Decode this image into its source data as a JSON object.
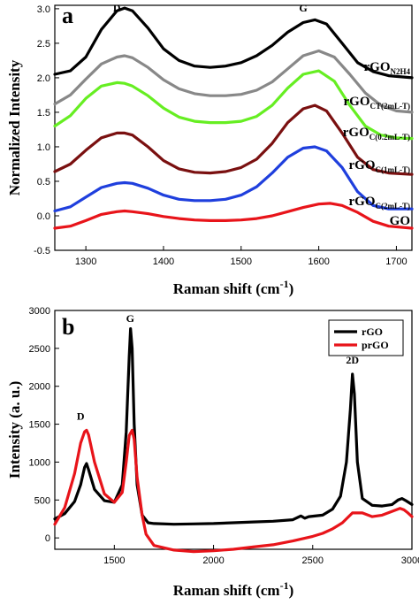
{
  "chart_data": [
    {
      "panel": "a",
      "type": "line",
      "xlabel": "Raman shift (cm",
      "xlabel_sup": "-1",
      "xlabel_end": ")",
      "ylabel": "Normalized Intensity",
      "xlim": [
        1260,
        1720
      ],
      "ylim": [
        -0.5,
        3.05
      ],
      "xticks": [
        1300,
        1400,
        1500,
        1600,
        1700
      ],
      "yticks": [
        -0.5,
        0.0,
        0.5,
        1.0,
        1.5,
        2.0,
        2.5,
        3.0
      ],
      "peak_labels": [
        {
          "text": "D",
          "x": 1340,
          "y": 2.96
        },
        {
          "text": "G",
          "x": 1580,
          "y": 2.96
        }
      ],
      "series": [
        {
          "label_main": "rGO",
          "label_sub": "N2H4",
          "color": "#000000",
          "x": [
            1260,
            1280,
            1300,
            1320,
            1340,
            1350,
            1360,
            1380,
            1400,
            1420,
            1440,
            1460,
            1480,
            1500,
            1520,
            1540,
            1560,
            1580,
            1595,
            1610,
            1630,
            1650,
            1670,
            1690,
            1720
          ],
          "y": [
            2.05,
            2.1,
            2.3,
            2.7,
            2.97,
            3.01,
            2.97,
            2.72,
            2.42,
            2.25,
            2.17,
            2.15,
            2.17,
            2.22,
            2.32,
            2.47,
            2.66,
            2.8,
            2.84,
            2.78,
            2.5,
            2.22,
            2.09,
            2.03,
            2.0
          ]
        },
        {
          "label_main": "rGO",
          "label_sub": "CT(2mL-T)",
          "color": "#888888",
          "x": [
            1260,
            1280,
            1300,
            1320,
            1340,
            1350,
            1360,
            1380,
            1400,
            1420,
            1440,
            1460,
            1480,
            1500,
            1520,
            1540,
            1560,
            1580,
            1600,
            1620,
            1640,
            1660,
            1680,
            1700,
            1720
          ],
          "y": [
            1.62,
            1.75,
            1.98,
            2.2,
            2.3,
            2.32,
            2.29,
            2.15,
            1.97,
            1.84,
            1.77,
            1.74,
            1.74,
            1.76,
            1.82,
            1.94,
            2.13,
            2.32,
            2.39,
            2.3,
            2.05,
            1.78,
            1.6,
            1.52,
            1.5
          ]
        },
        {
          "label_main": "rGO",
          "label_sub": "C(0.2mL-T)",
          "color": "#66ee22",
          "x": [
            1260,
            1280,
            1300,
            1320,
            1340,
            1350,
            1360,
            1380,
            1400,
            1420,
            1440,
            1460,
            1480,
            1500,
            1520,
            1540,
            1560,
            1580,
            1600,
            1620,
            1640,
            1660,
            1680,
            1700,
            1720
          ],
          "y": [
            1.3,
            1.45,
            1.7,
            1.88,
            1.93,
            1.92,
            1.88,
            1.74,
            1.56,
            1.43,
            1.37,
            1.35,
            1.35,
            1.37,
            1.44,
            1.6,
            1.85,
            2.05,
            2.1,
            1.95,
            1.6,
            1.3,
            1.17,
            1.13,
            1.12
          ]
        },
        {
          "label_main": "rGO",
          "label_sub": "C(1mL-T)",
          "color": "#7a1010",
          "x": [
            1260,
            1280,
            1300,
            1320,
            1340,
            1350,
            1360,
            1380,
            1400,
            1420,
            1440,
            1460,
            1480,
            1500,
            1520,
            1540,
            1560,
            1580,
            1595,
            1610,
            1630,
            1650,
            1670,
            1690,
            1720
          ],
          "y": [
            0.64,
            0.75,
            0.95,
            1.13,
            1.2,
            1.2,
            1.17,
            1.0,
            0.8,
            0.68,
            0.63,
            0.62,
            0.64,
            0.7,
            0.82,
            1.05,
            1.35,
            1.55,
            1.6,
            1.52,
            1.2,
            0.85,
            0.67,
            0.62,
            0.6
          ]
        },
        {
          "label_main": "rGO",
          "label_sub": "C(2mL-T)",
          "color": "#1f3fdd",
          "x": [
            1260,
            1280,
            1300,
            1320,
            1340,
            1350,
            1360,
            1380,
            1400,
            1420,
            1440,
            1460,
            1480,
            1500,
            1520,
            1540,
            1560,
            1580,
            1595,
            1610,
            1630,
            1650,
            1670,
            1690,
            1720
          ],
          "y": [
            0.07,
            0.13,
            0.27,
            0.41,
            0.47,
            0.48,
            0.47,
            0.4,
            0.3,
            0.24,
            0.22,
            0.22,
            0.24,
            0.3,
            0.42,
            0.62,
            0.85,
            0.98,
            1.0,
            0.94,
            0.7,
            0.35,
            0.15,
            0.1,
            0.1
          ]
        },
        {
          "label_main": "GO",
          "label_sub": "",
          "color": "#e8141a",
          "x": [
            1260,
            1280,
            1300,
            1320,
            1340,
            1350,
            1360,
            1380,
            1400,
            1420,
            1440,
            1460,
            1480,
            1500,
            1520,
            1540,
            1560,
            1580,
            1600,
            1615,
            1630,
            1650,
            1670,
            1690,
            1720
          ],
          "y": [
            -0.18,
            -0.15,
            -0.07,
            0.02,
            0.06,
            0.07,
            0.06,
            0.03,
            -0.01,
            -0.04,
            -0.06,
            -0.07,
            -0.07,
            -0.06,
            -0.04,
            0.0,
            0.06,
            0.12,
            0.17,
            0.18,
            0.15,
            0.05,
            -0.08,
            -0.15,
            -0.18
          ]
        }
      ]
    },
    {
      "panel": "b",
      "type": "line",
      "xlabel": "Raman shift (cm",
      "xlabel_sup": "-1",
      "xlabel_end": ")",
      "ylabel": "Intensity (a. u.)",
      "xlim": [
        1200,
        3000
      ],
      "ylim": [
        -150,
        3000
      ],
      "xticks": [
        1500,
        2000,
        2500,
        3000
      ],
      "yticks": [
        0,
        500,
        1000,
        1500,
        2000,
        2500,
        3000
      ],
      "peak_labels": [
        {
          "text": "D",
          "x": 1330,
          "y": 1560
        },
        {
          "text": "G",
          "x": 1580,
          "y": 2850
        },
        {
          "text": "2D",
          "x": 2700,
          "y": 2300
        }
      ],
      "legend_position": "top-right",
      "series": [
        {
          "label_main": "rGO",
          "color": "#000000",
          "x": [
            1200,
            1250,
            1300,
            1330,
            1350,
            1360,
            1370,
            1400,
            1450,
            1500,
            1540,
            1560,
            1575,
            1582,
            1590,
            1600,
            1615,
            1640,
            1670,
            1700,
            1800,
            1900,
            2000,
            2100,
            2200,
            2300,
            2400,
            2440,
            2460,
            2480,
            2550,
            2600,
            2640,
            2670,
            2690,
            2700,
            2710,
            2725,
            2750,
            2800,
            2850,
            2900,
            2930,
            2950,
            2970,
            3000
          ],
          "y": [
            250,
            320,
            480,
            700,
            930,
            980,
            900,
            640,
            490,
            470,
            700,
            1400,
            2400,
            2760,
            2500,
            1500,
            700,
            300,
            200,
            190,
            180,
            185,
            190,
            200,
            210,
            220,
            240,
            290,
            260,
            280,
            300,
            380,
            550,
            1000,
            1700,
            2160,
            1900,
            1000,
            520,
            430,
            420,
            440,
            500,
            520,
            490,
            440
          ]
        },
        {
          "label_main": "prGO",
          "color": "#e8141a",
          "x": [
            1200,
            1250,
            1300,
            1330,
            1350,
            1360,
            1370,
            1400,
            1450,
            1500,
            1540,
            1560,
            1575,
            1590,
            1600,
            1615,
            1640,
            1660,
            1700,
            1800,
            1900,
            2000,
            2100,
            2200,
            2300,
            2400,
            2500,
            2550,
            2600,
            2650,
            2700,
            2750,
            2800,
            2850,
            2900,
            2940,
            2960,
            2980,
            3000
          ],
          "y": [
            180,
            400,
            850,
            1250,
            1400,
            1420,
            1360,
            1000,
            580,
            470,
            600,
            1000,
            1350,
            1420,
            1300,
            800,
            300,
            50,
            -100,
            -160,
            -180,
            -170,
            -150,
            -120,
            -90,
            -40,
            20,
            60,
            120,
            200,
            330,
            330,
            280,
            300,
            350,
            390,
            370,
            330,
            280
          ]
        }
      ]
    }
  ]
}
